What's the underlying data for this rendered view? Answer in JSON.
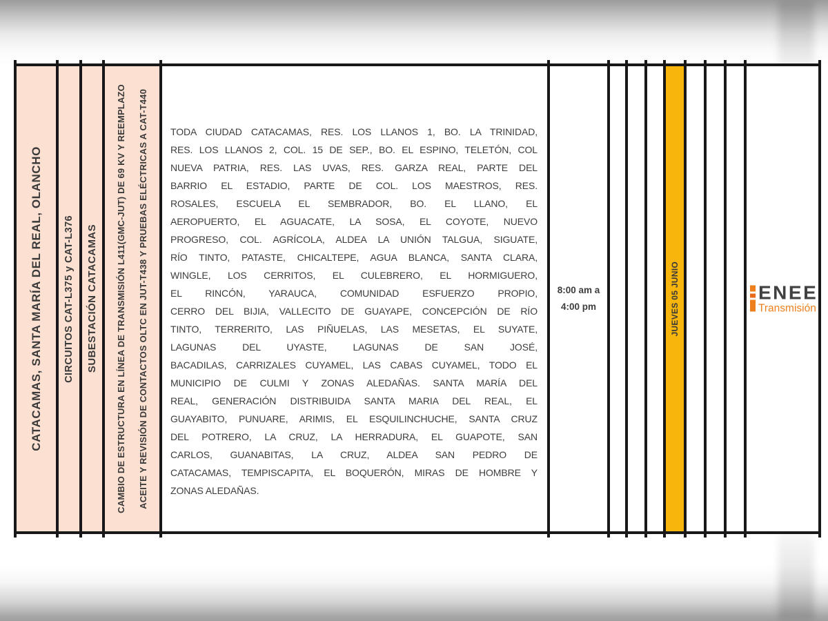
{
  "document": {
    "region": "CATACAMAS, SANTA MARÍA DEL REAL, OLANCHO",
    "circuits": "CIRCUITOS  CAT-L375 y CAT-L376",
    "substation": "SUBESTACIÓN CATACAMAS",
    "work_description_line1": "CAMBIO DE ESTRUCTURA EN LÍNEA DE TRANSMISIÓN L411(GMC-JUT) DE 69 KV Y REEMPLAZO",
    "work_description_line2": "ACEITE Y REVISIÓN DE CONTACTOS OLTC EN JUT-T438 Y PRUEBAS ELÉCTRICAS A CAT-T440",
    "affected_areas_lines": [
      "TODA CIUDAD CATACAMAS, RES. LOS LLANOS 1, BO. LA TRINIDAD,",
      "RES. LOS LLANOS 2, COL. 15 DE SEP., BO. EL ESPINO, TELETÓN, COL",
      "NUEVA PATRIA, RES. LAS UVAS, RES. GARZA REAL, PARTE DEL",
      "BARRIO EL ESTADIO, PARTE DE COL. LOS MAESTROS, RES.",
      "ROSALES, ESCUELA EL SEMBRADOR, BO. EL LLANO, EL",
      "AEROPUERTO, EL AGUACATE, LA SOSA, EL COYOTE, NUEVO",
      "PROGRESO, COL. AGRÍCOLA, ALDEA LA UNIÓN TALGUA, SIGUATE,",
      "RÍO TINTO, PATASTE, CHICALTEPE, AGUA BLANCA, SANTA CLARA,",
      "WINGLE, LOS CERRITOS, EL CULEBRERO, EL HORMIGUERO,",
      "EL RINCÓN, YARAUCA, COMUNIDAD ESFUERZO PROPIO,",
      "CERRO DEL BIJIA, VALLECITO DE GUAYAPE, CONCEPCIÓN DE RÍO",
      "TINTO, TERRERITO, LAS PIÑUELAS, LAS MESETAS, EL SUYATE,",
      "LAGUNAS DEL UYASTE, LAGUNAS DE SAN JOSÉ,",
      "BACADILAS, CARRIZALES CUYAMEL, LAS CABAS CUYAMEL, TODO EL",
      "MUNICIPIO DE CULMI Y ZONAS ALEDAÑAS. SANTA MARÍA DEL",
      "REAL, GENERACIÓN DISTRIBUIDA SANTA MARIA DEL REAL, EL",
      "GUAYABITO, PUNUARE, ARIMIS, EL ESQUILINCHUCHE, SANTA CRUZ",
      "DEL POTRERO, LA CRUZ, LA HERRADURA, EL GUAPOTE, SAN",
      "CARLOS, GUANABITAS, LA CRUZ, ALDEA SAN PEDRO DE",
      "CATACAMAS, TEMPISCAPITA, EL BOQUERÓN, MIRAS DE HOMBRE Y",
      "ZONAS ALEDAÑAS."
    ],
    "schedule": {
      "time_line1": "8:00 am a",
      "time_line2": "4:00 pm",
      "date": "JUEVES 05 JUNIO"
    },
    "logo": {
      "title": "ENEE",
      "subtitle": "Transmisión"
    },
    "colors": {
      "peach": "#FCE0D2",
      "gold": "#F8B60D",
      "border": "#181818",
      "ink": "#3C3C3C",
      "logo_orange": "#EE7F1D",
      "logo_ink": "#414141"
    }
  }
}
